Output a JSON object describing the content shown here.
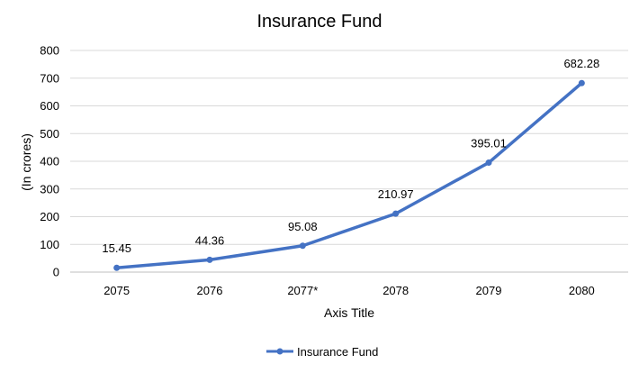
{
  "chart_data": {
    "type": "line",
    "title": "Insurance Fund",
    "xlabel": "Axis Title",
    "ylabel": "(In crores)",
    "categories": [
      "2075",
      "2076",
      "2077*",
      "2078",
      "2079",
      "2080"
    ],
    "series": [
      {
        "name": "Insurance Fund",
        "values": [
          15.45,
          44.36,
          95.08,
          210.97,
          395.01,
          682.28
        ],
        "labels": [
          "15.45",
          "44.36",
          "95.08",
          "210.97",
          "395.01",
          "682.28"
        ],
        "color": "#4472c4"
      }
    ],
    "ylim": [
      0,
      800
    ],
    "yticks": [
      0,
      100,
      200,
      300,
      400,
      500,
      600,
      700,
      800
    ],
    "grid": true,
    "legend": "bottom"
  }
}
